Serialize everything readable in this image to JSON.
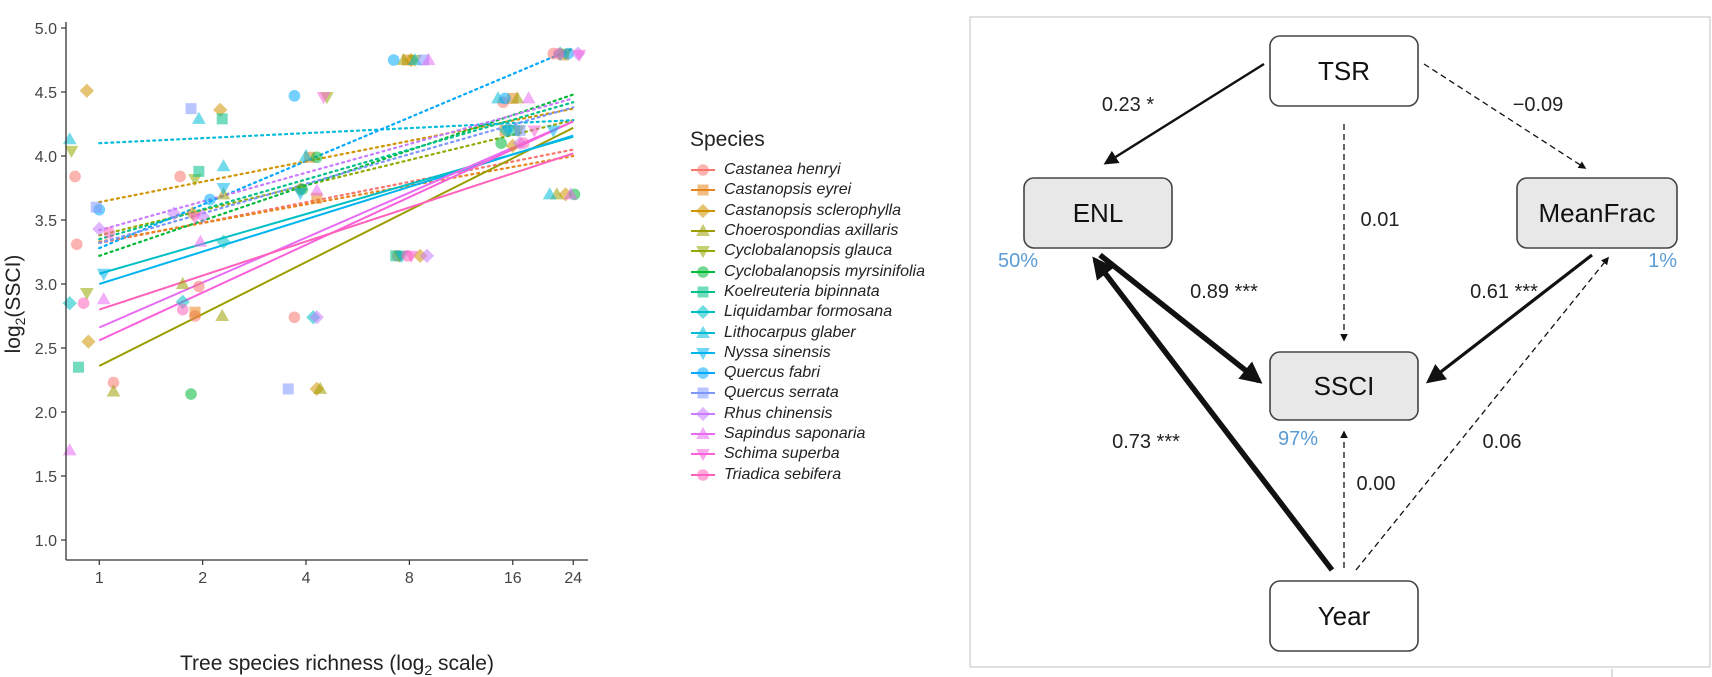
{
  "chart_data": [
    {
      "type": "scatter",
      "xlabel": "Tree species richness (log",
      "xlabel_sub": "2",
      "xlabel_tail": " scale)",
      "ylabel_pre": "log",
      "ylabel_sub": "2",
      "ylabel_post": "(SSCI)",
      "x_scale": "log2",
      "x_ticks": [
        "1",
        "2",
        "4",
        "8",
        "16",
        "24"
      ],
      "x_tick_values": [
        1,
        2,
        4,
        8,
        16,
        24
      ],
      "y_ticks": [
        "1.0",
        "1.5",
        "2.0",
        "2.5",
        "3.0",
        "3.5",
        "4.0",
        "4.5",
        "5.0"
      ],
      "y_tick_values": [
        1.0,
        1.5,
        2.0,
        2.5,
        3.0,
        3.5,
        4.0,
        4.5,
        5.0
      ],
      "xlim": [
        0.8,
        26.5
      ],
      "ylim": [
        1.0,
        5.0
      ],
      "grid": false,
      "legend_title": "Species",
      "legend_position": "right",
      "series": [
        {
          "name": "Castanea henryi",
          "color": "#F8766D",
          "shape": "circle",
          "line": "dotted",
          "fit": [
            [
              1,
              3.32
            ],
            [
              24,
              4.05
            ]
          ],
          "points": [
            [
              0.85,
              3.84
            ],
            [
              0.86,
              3.31
            ],
            [
              1.1,
              2.23
            ],
            [
              1.72,
              3.84
            ],
            [
              1.9,
              2.75
            ],
            [
              1.95,
              2.98
            ],
            [
              3.7,
              2.74
            ],
            [
              7.4,
              3.22
            ],
            [
              15,
              4.42
            ],
            [
              21,
              4.8
            ]
          ]
        },
        {
          "name": "Castanopsis eyrei",
          "color": "#E7851E",
          "shape": "square",
          "line": "dotted",
          "fit": [
            [
              1,
              3.33
            ],
            [
              24,
              4.0
            ]
          ],
          "points": [
            [
              1.9,
              2.78
            ],
            [
              4.1,
              3.99
            ],
            [
              4.3,
              3.67
            ],
            [
              7.9,
              4.75
            ],
            [
              15.2,
              4.2
            ],
            [
              16,
              4.45
            ],
            [
              22.5,
              4.79
            ]
          ]
        },
        {
          "name": "Castanopsis sclerophylla",
          "color": "#D09400",
          "shape": "diamond",
          "line": "dotted",
          "fit": [
            [
              1,
              3.64
            ],
            [
              24,
              4.37
            ]
          ],
          "points": [
            [
              0.92,
              4.51
            ],
            [
              0.93,
              2.55
            ],
            [
              1.87,
              3.55
            ],
            [
              2.25,
              4.36
            ],
            [
              3.85,
              3.74
            ],
            [
              4.3,
              2.18
            ],
            [
              8.1,
              4.75
            ],
            [
              8.6,
              3.22
            ],
            [
              16,
              4.08
            ],
            [
              22.8,
              3.7
            ]
          ]
        },
        {
          "name": "Choerospondias axillaris",
          "color": "#9C9E00",
          "shape": "triangle",
          "line": "solid",
          "fit": [
            [
              1,
              2.36
            ],
            [
              24,
              4.22
            ]
          ],
          "points": [
            [
              1.1,
              2.16
            ],
            [
              1.75,
              3.0
            ],
            [
              2.28,
              2.75
            ],
            [
              2.3,
              3.7
            ],
            [
              4.4,
              2.18
            ],
            [
              7.7,
              4.75
            ],
            [
              16.5,
              4.45
            ],
            [
              21.5,
              3.7
            ]
          ]
        },
        {
          "name": "Cyclobalanopsis glauca",
          "color": "#93AA00",
          "shape": "triangle-down",
          "line": "dotted",
          "fit": [
            [
              1,
              3.38
            ],
            [
              24,
              4.28
            ]
          ],
          "points": [
            [
              0.83,
              4.04
            ],
            [
              0.92,
              2.93
            ],
            [
              1.9,
              3.82
            ],
            [
              4.6,
              4.46
            ],
            [
              7.5,
              3.22
            ],
            [
              8.3,
              4.75
            ],
            [
              16.6,
              4.2
            ],
            [
              22.8,
              4.8
            ]
          ]
        },
        {
          "name": "Cyclobalanopsis myrsinifolia",
          "color": "#00BA38",
          "shape": "circle",
          "line": "dotted",
          "fit": [
            [
              1,
              3.22
            ],
            [
              24,
              4.48
            ]
          ],
          "points": [
            [
              1.85,
              2.14
            ],
            [
              3.9,
              3.74
            ],
            [
              4.3,
              3.99
            ],
            [
              14.8,
              4.1
            ],
            [
              24.2,
              3.7
            ]
          ]
        },
        {
          "name": "Koelreuteria bipinnata",
          "color": "#00C08B",
          "shape": "square",
          "line": "dotted",
          "fit": [
            [
              1,
              3.35
            ],
            [
              24,
              4.42
            ]
          ],
          "points": [
            [
              0.87,
              2.35
            ],
            [
              1.95,
              3.88
            ],
            [
              2.28,
              4.29
            ],
            [
              7.3,
              3.22
            ],
            [
              16.2,
              4.2
            ]
          ]
        },
        {
          "name": "Liquidambar formosana",
          "color": "#00BFC4",
          "shape": "diamond",
          "line": "solid",
          "fit": [
            [
              1,
              3.08
            ],
            [
              24,
              4.15
            ]
          ],
          "points": [
            [
              0.82,
              2.85
            ],
            [
              1.75,
              2.86
            ],
            [
              2.3,
              3.33
            ],
            [
              4.2,
              2.74
            ],
            [
              15.3,
              4.2
            ],
            [
              22,
              4.8
            ]
          ]
        },
        {
          "name": "Lithocarpus glaber",
          "color": "#00BCD8",
          "shape": "triangle",
          "line": "dotted",
          "fit": [
            [
              1,
              4.1
            ],
            [
              24,
              4.28
            ]
          ],
          "points": [
            [
              0.82,
              4.13
            ],
            [
              1.95,
              4.29
            ],
            [
              2.3,
              3.92
            ],
            [
              4.0,
              4.0
            ],
            [
              8.3,
              4.75
            ],
            [
              14.5,
              4.45
            ],
            [
              20.5,
              3.7
            ]
          ]
        },
        {
          "name": "Nyssa sinensis",
          "color": "#00B4EF",
          "shape": "triangle-down",
          "line": "solid",
          "fit": [
            [
              1,
              3.0
            ],
            [
              24,
              4.16
            ]
          ],
          "points": [
            [
              1.03,
              3.08
            ],
            [
              2.3,
              3.75
            ],
            [
              3.85,
              3.71
            ],
            [
              7.6,
              3.22
            ],
            [
              15.5,
              4.2
            ],
            [
              21,
              4.2
            ]
          ]
        },
        {
          "name": "Quercus fabri",
          "color": "#00A9FF",
          "shape": "circle",
          "line": "dotted",
          "fit": [
            [
              1,
              3.28
            ],
            [
              24,
              4.84
            ]
          ],
          "points": [
            [
              1.0,
              3.58
            ],
            [
              2.1,
              3.66
            ],
            [
              3.7,
              4.47
            ],
            [
              7.2,
              4.75
            ],
            [
              15.2,
              4.45
            ],
            [
              23.2,
              4.8
            ]
          ]
        },
        {
          "name": "Quercus serrata",
          "color": "#7F96FF",
          "shape": "square",
          "line": "dotted",
          "fit": [
            [
              1,
              3.32
            ],
            [
              24,
              4.38
            ]
          ],
          "points": [
            [
              0.98,
              3.6
            ],
            [
              1.85,
              4.37
            ],
            [
              3.55,
              2.18
            ],
            [
              8.8,
              4.75
            ],
            [
              16.8,
              4.2
            ]
          ]
        },
        {
          "name": "Rhus chinensis",
          "color": "#C77CFF",
          "shape": "diamond",
          "line": "dotted",
          "fit": [
            [
              1,
              3.42
            ],
            [
              24,
              4.45
            ]
          ],
          "points": [
            [
              1.0,
              3.43
            ],
            [
              1.65,
              3.55
            ],
            [
              2.0,
              3.53
            ],
            [
              4.3,
              2.74
            ],
            [
              9.0,
              3.22
            ],
            [
              16.8,
              4.1
            ],
            [
              24.8,
              4.8
            ]
          ]
        },
        {
          "name": "Sapindus saponaria",
          "color": "#E76BF3",
          "shape": "triangle",
          "line": "solid",
          "fit": [
            [
              1,
              2.66
            ],
            [
              24,
              4.27
            ]
          ],
          "points": [
            [
              0.82,
              1.7
            ],
            [
              1.03,
              2.88
            ],
            [
              1.97,
              3.33
            ],
            [
              4.3,
              3.73
            ],
            [
              9.1,
              4.75
            ],
            [
              17.8,
              4.45
            ],
            [
              23.6,
              3.7
            ]
          ]
        },
        {
          "name": "Schima superba",
          "color": "#FA62DB",
          "shape": "triangle-down",
          "line": "solid",
          "fit": [
            [
              1,
              2.56
            ],
            [
              24,
              4.27
            ]
          ],
          "points": [
            [
              1.9,
              3.52
            ],
            [
              4.5,
              4.46
            ],
            [
              8.1,
              3.22
            ],
            [
              18.5,
              4.2
            ],
            [
              25,
              4.79
            ]
          ]
        },
        {
          "name": "Triadica sebifera",
          "color": "#FF62BC",
          "shape": "circle",
          "line": "solid",
          "fit": [
            [
              1,
              2.8
            ],
            [
              24,
              4.02
            ]
          ],
          "points": [
            [
              0.9,
              2.85
            ],
            [
              1.07,
              3.4
            ],
            [
              1.75,
              2.8
            ],
            [
              7.9,
              3.22
            ],
            [
              17.2,
              4.1
            ],
            [
              21.8,
              4.8
            ]
          ]
        }
      ]
    },
    {
      "type": "diagram",
      "nodes": [
        {
          "id": "TSR",
          "label": "TSR",
          "shaded": false
        },
        {
          "id": "ENL",
          "label": "ENL",
          "shaded": true,
          "r2": "50%"
        },
        {
          "id": "MeanFrac",
          "label": "MeanFrac",
          "shaded": true,
          "r2": "1%"
        },
        {
          "id": "SSCI",
          "label": "SSCI",
          "shaded": true,
          "r2": "97%"
        },
        {
          "id": "Year",
          "label": "Year",
          "shaded": false
        }
      ],
      "edges": [
        {
          "from": "TSR",
          "to": "ENL",
          "label": "0.23 *",
          "style": "solid"
        },
        {
          "from": "TSR",
          "to": "MeanFrac",
          "label": "−0.09",
          "style": "dashed"
        },
        {
          "from": "TSR",
          "to": "SSCI",
          "label": "0.01",
          "style": "dashed"
        },
        {
          "from": "ENL",
          "to": "SSCI",
          "label": "0.89 ***",
          "style": "solid-thick"
        },
        {
          "from": "MeanFrac",
          "to": "SSCI",
          "label": "0.61 ***",
          "style": "solid"
        },
        {
          "from": "Year",
          "to": "ENL",
          "label": "0.73 ***",
          "style": "solid-thick"
        },
        {
          "from": "Year",
          "to": "SSCI",
          "label": "0.00",
          "style": "dashed"
        },
        {
          "from": "Year",
          "to": "MeanFrac",
          "label": "0.06",
          "style": "dashed"
        }
      ]
    }
  ],
  "colors": {
    "r2_text": "#5B9BD5",
    "shaded_node": "#e8e8e8",
    "frame": "#cccccc"
  }
}
